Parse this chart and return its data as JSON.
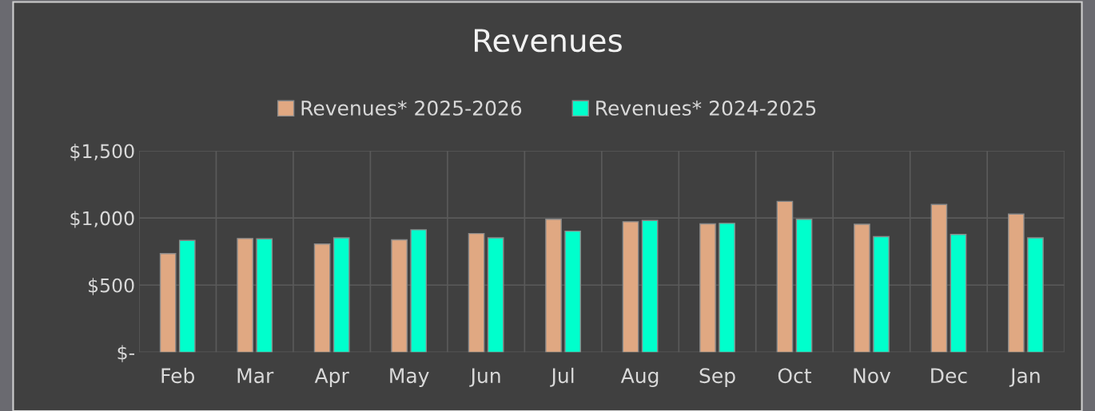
{
  "chart_data": {
    "type": "bar",
    "title": "Revenues",
    "categories": [
      "Feb",
      "Mar",
      "Apr",
      "May",
      "Jun",
      "Jul",
      "Aug",
      "Sep",
      "Oct",
      "Nov",
      "Dec",
      "Jan"
    ],
    "series": [
      {
        "name": "Revenues* 2025-2026",
        "color": "#e0a882",
        "values": [
          735,
          847,
          806,
          837,
          884,
          990,
          972,
          956,
          1123,
          953,
          1100,
          1029
        ]
      },
      {
        "name": "Revenues* 2024-2025",
        "color": "#00ffcc",
        "values": [
          833,
          845,
          852,
          912,
          852,
          902,
          981,
          960,
          990,
          861,
          877,
          852
        ]
      }
    ],
    "ylim": [
      0,
      1500
    ],
    "yticks": [
      {
        "value": 0,
        "label": "$-"
      },
      {
        "value": 500,
        "label": "$500"
      },
      {
        "value": 1000,
        "label": "$1,000"
      },
      {
        "value": 1500,
        "label": "$1,500"
      }
    ],
    "grid": true,
    "legend": "top"
  }
}
